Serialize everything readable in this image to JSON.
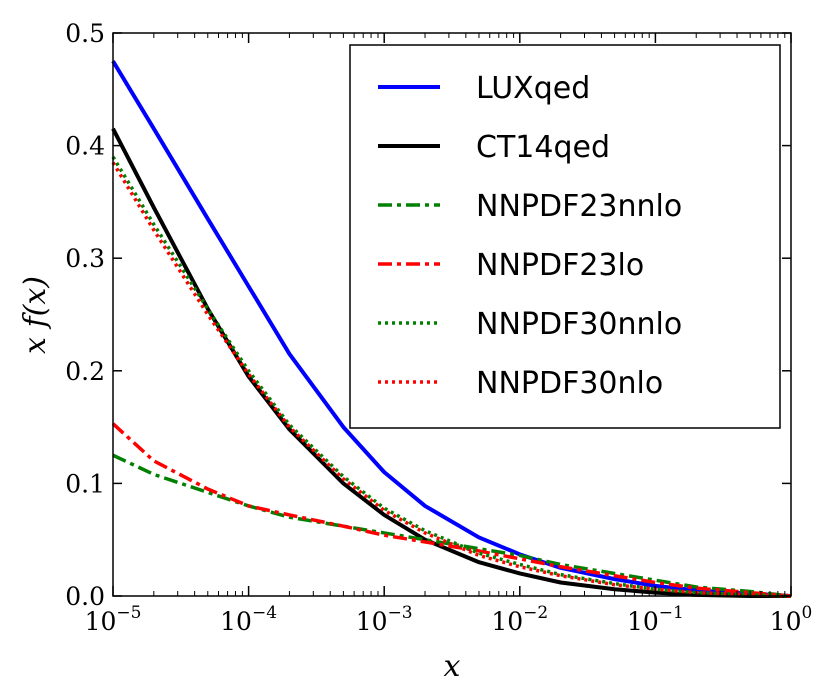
{
  "chart_data": {
    "type": "line",
    "title": "",
    "xlabel": "x",
    "ylabel": "x f(x)",
    "xscale": "log",
    "xlim": [
      1e-05,
      1
    ],
    "ylim": [
      0.0,
      0.5
    ],
    "grid": false,
    "legend_position": "top-right",
    "x_ticks": [
      {
        "base": "10",
        "exp": "−5"
      },
      {
        "base": "10",
        "exp": "−4"
      },
      {
        "base": "10",
        "exp": "−3"
      },
      {
        "base": "10",
        "exp": "−2"
      },
      {
        "base": "10",
        "exp": "−1"
      },
      {
        "base": "10",
        "exp": "0"
      }
    ],
    "y_ticks": [
      "0.0",
      "0.1",
      "0.2",
      "0.3",
      "0.4",
      "0.5"
    ],
    "x": [
      1e-05,
      2e-05,
      5e-05,
      0.0001,
      0.0002,
      0.0005,
      0.001,
      0.002,
      0.005,
      0.01,
      0.02,
      0.05,
      0.1,
      0.2,
      0.5,
      1.0
    ],
    "series": [
      {
        "name": "LUXqed",
        "color": "#0000ff",
        "dash": "solid",
        "values": [
          0.475,
          0.415,
          0.335,
          0.275,
          0.215,
          0.15,
          0.11,
          0.08,
          0.052,
          0.037,
          0.025,
          0.015,
          0.009,
          0.005,
          0.002,
          0.0
        ]
      },
      {
        "name": "CT14qed",
        "color": "#000000",
        "dash": "solid",
        "values": [
          0.415,
          0.345,
          0.255,
          0.195,
          0.148,
          0.1,
          0.072,
          0.05,
          0.03,
          0.02,
          0.012,
          0.006,
          0.003,
          0.001,
          0.0,
          0.0
        ]
      },
      {
        "name": "NNPDF23nnlo",
        "color": "#008000",
        "dash": "dashdot",
        "values": [
          0.125,
          0.108,
          0.092,
          0.08,
          0.07,
          0.062,
          0.056,
          0.05,
          0.042,
          0.036,
          0.028,
          0.02,
          0.014,
          0.008,
          0.004,
          0.0
        ]
      },
      {
        "name": "NNPDF23lo",
        "color": "#ff0000",
        "dash": "dashdot",
        "values": [
          0.153,
          0.12,
          0.095,
          0.08,
          0.072,
          0.062,
          0.054,
          0.048,
          0.04,
          0.033,
          0.026,
          0.018,
          0.012,
          0.007,
          0.003,
          0.0
        ]
      },
      {
        "name": "NNPDF30nnlo",
        "color": "#008000",
        "dash": "dotted",
        "values": [
          0.39,
          0.33,
          0.255,
          0.2,
          0.152,
          0.106,
          0.078,
          0.058,
          0.038,
          0.028,
          0.019,
          0.011,
          0.006,
          0.003,
          0.001,
          0.0
        ]
      },
      {
        "name": "NNPDF30nlo",
        "color": "#ff0000",
        "dash": "dotted",
        "values": [
          0.385,
          0.325,
          0.25,
          0.197,
          0.15,
          0.104,
          0.076,
          0.056,
          0.036,
          0.026,
          0.018,
          0.01,
          0.006,
          0.003,
          0.001,
          0.0
        ]
      }
    ]
  }
}
